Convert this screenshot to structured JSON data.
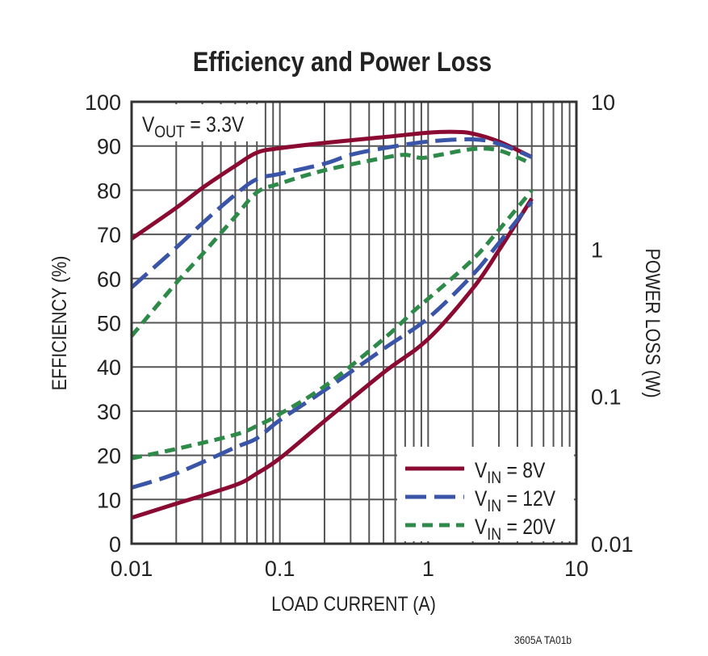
{
  "chart_data": {
    "type": "line",
    "title": "Efficiency and Power Loss",
    "xlabel": "LOAD CURRENT (A)",
    "ylabel": "EFFICIENCY (%)",
    "y2label": "POWER LOSS (W)",
    "xscale": "log",
    "xlim": [
      0.01,
      10
    ],
    "ylim": [
      0,
      100
    ],
    "y2scale": "log",
    "y2lim": [
      0.01,
      10
    ],
    "x_ticks": [
      "0.01",
      "0.1",
      "1",
      "10"
    ],
    "y_ticks": [
      "0",
      "10",
      "20",
      "30",
      "40",
      "50",
      "60",
      "70",
      "80",
      "90",
      "100"
    ],
    "y2_ticks": [
      "0.01",
      "0.1",
      "1",
      "10"
    ],
    "grid": true,
    "legend_placement": "bottom-right",
    "annotation": {
      "main": "V",
      "sub": "OUT",
      "rest": " = 3.3V"
    },
    "footnote": "3605A TA01b",
    "series": [
      {
        "name": "VIN = 8V",
        "legend_main": "V",
        "legend_sub": "IN",
        "legend_rest": " = 8V",
        "color": "#8a0a32",
        "style": "solid",
        "efficiency": {
          "x": [
            0.01,
            0.02,
            0.03,
            0.05,
            0.07,
            0.1,
            0.2,
            0.5,
            1,
            1.5,
            2,
            3,
            5
          ],
          "y": [
            69,
            76,
            80.5,
            85.5,
            88.5,
            89.5,
            90.7,
            92,
            93,
            93.2,
            92.8,
            91,
            87.5
          ]
        },
        "power_loss": {
          "x": [
            0.01,
            0.02,
            0.05,
            0.07,
            0.1,
            0.2,
            0.5,
            1,
            2,
            3,
            5
          ],
          "y": [
            0.015,
            0.0187,
            0.025,
            0.03,
            0.038,
            0.068,
            0.145,
            0.245,
            0.54,
            0.98,
            2.2
          ]
        }
      },
      {
        "name": "VIN = 12V",
        "legend_main": "V",
        "legend_sub": "IN",
        "legend_rest": " = 12V",
        "color": "#3a55a8",
        "style": "long-dash",
        "efficiency": {
          "x": [
            0.01,
            0.02,
            0.03,
            0.05,
            0.07,
            0.1,
            0.2,
            0.3,
            0.5,
            1,
            2,
            3,
            5
          ],
          "y": [
            58,
            67,
            72.5,
            79,
            82.5,
            83.7,
            86,
            88,
            89.5,
            91,
            91.5,
            90.5,
            87.5
          ]
        },
        "power_loss": {
          "x": [
            0.01,
            0.02,
            0.05,
            0.07,
            0.1,
            0.2,
            0.5,
            1,
            2,
            3,
            5
          ],
          "y": [
            0.024,
            0.03,
            0.045,
            0.052,
            0.069,
            0.11,
            0.21,
            0.34,
            0.67,
            1.1,
            2.1
          ]
        }
      },
      {
        "name": "VIN = 20V",
        "legend_main": "V",
        "legend_sub": "IN",
        "legend_rest": " = 20V",
        "color": "#2e8a48",
        "style": "short-dash",
        "efficiency": {
          "x": [
            0.01,
            0.02,
            0.03,
            0.05,
            0.07,
            0.1,
            0.2,
            0.5,
            0.7,
            0.9,
            1.2,
            2,
            3,
            5
          ],
          "y": [
            47,
            59,
            65.5,
            74,
            79.5,
            81.5,
            84.5,
            87.3,
            88,
            87.3,
            88,
            89.3,
            89,
            86
          ]
        },
        "power_loss": {
          "x": [
            0.01,
            0.02,
            0.05,
            0.07,
            0.1,
            0.2,
            0.5,
            0.8,
            1,
            2,
            3,
            5
          ],
          "y": [
            0.038,
            0.044,
            0.055,
            0.063,
            0.076,
            0.117,
            0.245,
            0.38,
            0.46,
            0.85,
            1.35,
            2.5
          ]
        }
      }
    ]
  }
}
